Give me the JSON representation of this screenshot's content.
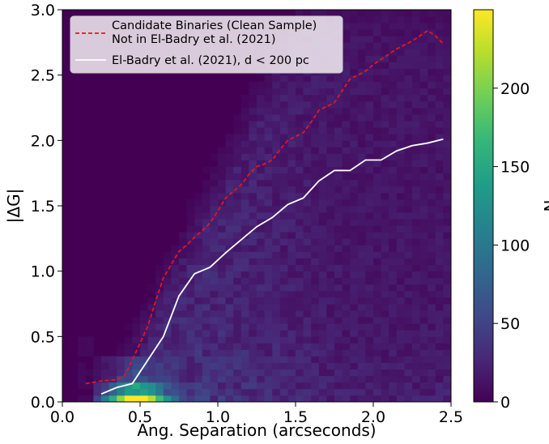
{
  "colors": {
    "viridis_stops": [
      "#440154",
      "#482878",
      "#3e4a89",
      "#31688e",
      "#26828e",
      "#1f9e89",
      "#35b779",
      "#6ece58",
      "#b5de2b",
      "#fde725"
    ],
    "red_dashed_line": "#e8161b",
    "white_line": "#ffffff",
    "legend_bg": "#f4eef4"
  },
  "chart_data": {
    "type": "heatmap",
    "xlabel": "Ang. Separation (arcseconds)",
    "ylabel": "|ΔG|",
    "colorbar_label": "N",
    "xlim": [
      0.0,
      2.5
    ],
    "ylim": [
      0.0,
      3.0
    ],
    "clim": [
      0,
      250
    ],
    "x_ticks": [
      "0.0",
      "0.5",
      "1.0",
      "1.5",
      "2.0",
      "2.5"
    ],
    "y_ticks": [
      "0.0",
      "0.5",
      "1.0",
      "1.5",
      "2.0",
      "2.5",
      "3.0"
    ],
    "colorbar_ticks": [
      "0",
      "50",
      "100",
      "150",
      "200"
    ],
    "colorbar_tick_values": [
      0,
      50,
      100,
      150,
      200
    ],
    "grid": false,
    "legend_position": "top-left",
    "series": [
      {
        "name": "Candidate Binaries (Clean Sample)\nNot in El-Badry et al. (2021)",
        "style": "dashed",
        "x": [
          0.15,
          0.25,
          0.35,
          0.4,
          0.45,
          0.5,
          0.55,
          0.6,
          0.65,
          0.7,
          0.75,
          0.8,
          0.85,
          0.9,
          0.95,
          1.0,
          1.05,
          1.1,
          1.15,
          1.2,
          1.25,
          1.3,
          1.35,
          1.4,
          1.45,
          1.5,
          1.55,
          1.6,
          1.65,
          1.7,
          1.75,
          1.8,
          1.85,
          1.9,
          1.95,
          2.0,
          2.05,
          2.1,
          2.15,
          2.2,
          2.25,
          2.3,
          2.35,
          2.4,
          2.45
        ],
        "values": [
          0.14,
          0.16,
          0.17,
          0.2,
          0.32,
          0.45,
          0.58,
          0.77,
          0.95,
          1.05,
          1.15,
          1.2,
          1.26,
          1.31,
          1.37,
          1.46,
          1.56,
          1.61,
          1.66,
          1.74,
          1.8,
          1.82,
          1.85,
          1.93,
          2.0,
          2.03,
          2.06,
          2.14,
          2.23,
          2.26,
          2.29,
          2.38,
          2.47,
          2.5,
          2.53,
          2.58,
          2.62,
          2.66,
          2.7,
          2.73,
          2.76,
          2.8,
          2.84,
          2.8,
          2.74
        ]
      },
      {
        "name": "El-Badry et al. (2021), d < 200 pc",
        "style": "solid",
        "x": [
          0.25,
          0.35,
          0.45,
          0.55,
          0.65,
          0.75,
          0.85,
          0.95,
          1.05,
          1.15,
          1.25,
          1.35,
          1.45,
          1.55,
          1.65,
          1.75,
          1.85,
          1.95,
          2.05,
          2.15,
          2.25,
          2.35,
          2.45
        ],
        "values": [
          0.06,
          0.11,
          0.14,
          0.32,
          0.5,
          0.81,
          0.98,
          1.03,
          1.14,
          1.24,
          1.34,
          1.41,
          1.51,
          1.56,
          1.69,
          1.77,
          1.77,
          1.85,
          1.85,
          1.92,
          1.96,
          1.98,
          2.01
        ]
      }
    ]
  }
}
